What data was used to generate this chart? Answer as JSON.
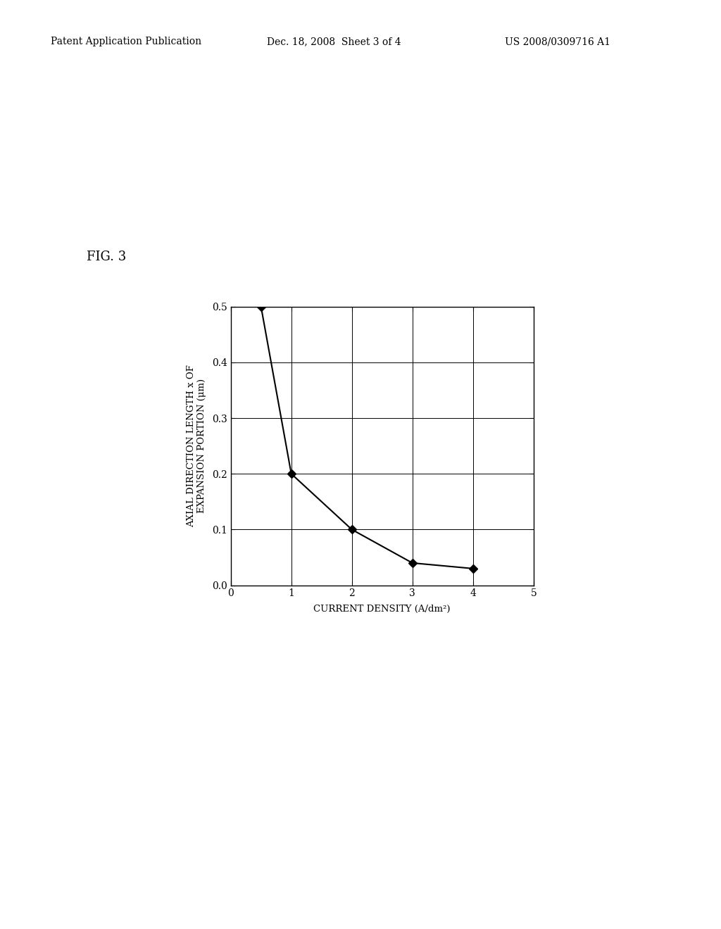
{
  "title_fig": "FIG. 3",
  "header_left": "Patent Application Publication",
  "header_center": "Dec. 18, 2008  Sheet 3 of 4",
  "header_right": "US 2008/0309716 A1",
  "x_data": [
    0.5,
    1.0,
    2.0,
    3.0,
    4.0
  ],
  "y_data": [
    0.5,
    0.2,
    0.1,
    0.04,
    0.03
  ],
  "xlabel": "CURRENT DENSITY (A/dm²)",
  "ylabel_line1": "AXIAL DIRECTION LENGTH x OF",
  "ylabel_line2": "EXPANSION PORTION (μm)",
  "xlim": [
    0,
    5
  ],
  "ylim": [
    0,
    0.5
  ],
  "xticks": [
    0,
    1,
    2,
    3,
    4,
    5
  ],
  "yticks": [
    0,
    0.1,
    0.2,
    0.3,
    0.4,
    0.5
  ],
  "line_color": "#000000",
  "marker_color": "#000000",
  "background_color": "#ffffff",
  "grid_color": "#000000",
  "marker_style": "D",
  "marker_size": 6,
  "line_width": 1.5,
  "axis_fontsize": 10,
  "label_fontsize": 9.5,
  "header_fontsize": 10,
  "fig_label_fontsize": 13
}
